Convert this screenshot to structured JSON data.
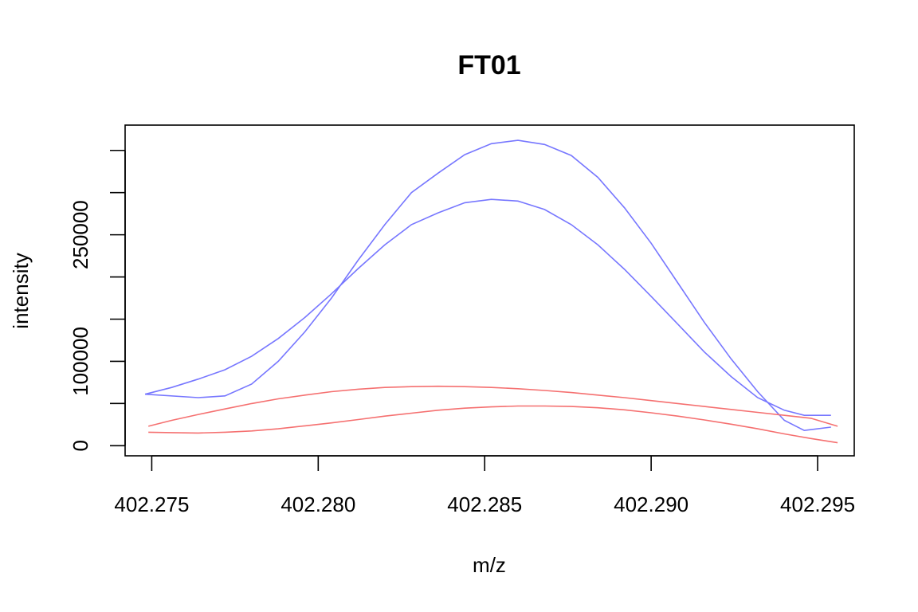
{
  "chart_data": {
    "type": "line",
    "title": "FT01",
    "xlabel": "m/z",
    "ylabel": "intensity",
    "xlim": [
      402.2742,
      402.2961
    ],
    "ylim": [
      -12000,
      380000
    ],
    "x_ticks": [
      402.275,
      402.28,
      402.285,
      402.29,
      402.295
    ],
    "x_tick_labels": [
      "402.275",
      "402.280",
      "402.285",
      "402.290",
      "402.295"
    ],
    "y_ticks": [
      0,
      50000,
      100000,
      150000,
      200000,
      250000,
      300000,
      350000
    ],
    "y_tick_labels": [
      "0",
      "",
      "100000",
      "",
      "",
      "250000",
      "",
      ""
    ],
    "grid": false,
    "legend": "none",
    "colors": {
      "blue": "#7777ff",
      "red": "#f57070"
    },
    "series": [
      {
        "color": "blue",
        "x": [
          402.2748,
          402.2764,
          402.2772,
          402.278,
          402.2788,
          402.2796,
          402.2804,
          402.2812,
          402.282,
          402.2828,
          402.2836,
          402.2844,
          402.2852,
          402.286,
          402.2868,
          402.2876,
          402.2884,
          402.2892,
          402.29,
          402.2908,
          402.2916,
          402.2924,
          402.2932,
          402.294,
          402.2946,
          402.2954
        ],
        "y": [
          61000,
          57000,
          59000,
          73000,
          100000,
          135000,
          175000,
          220000,
          262000,
          300000,
          323000,
          345000,
          358000,
          362000,
          357000,
          344000,
          318000,
          282000,
          240000,
          193000,
          146000,
          103000,
          64000,
          30000,
          18000,
          22000
        ]
      },
      {
        "color": "blue",
        "x": [
          402.2748,
          402.2756,
          402.2764,
          402.2772,
          402.278,
          402.2788,
          402.2796,
          402.2804,
          402.2812,
          402.282,
          402.2828,
          402.2836,
          402.2844,
          402.2852,
          402.286,
          402.2868,
          402.2876,
          402.2884,
          402.2892,
          402.29,
          402.2908,
          402.2916,
          402.2924,
          402.2932,
          402.294,
          402.2946,
          402.2954
        ],
        "y": [
          61000,
          69000,
          79000,
          90000,
          106000,
          127000,
          152000,
          180000,
          210000,
          238000,
          262000,
          276000,
          288000,
          292000,
          290000,
          280000,
          262000,
          238000,
          209000,
          177000,
          144000,
          111000,
          82000,
          57000,
          42000,
          36000,
          36000
        ]
      },
      {
        "color": "red",
        "x": [
          402.2749,
          402.2756,
          402.2764,
          402.2772,
          402.278,
          402.2788,
          402.2796,
          402.2804,
          402.2812,
          402.282,
          402.2828,
          402.2836,
          402.2844,
          402.2852,
          402.286,
          402.2868,
          402.2876,
          402.2884,
          402.2892,
          402.29,
          402.2908,
          402.2916,
          402.2924,
          402.2932,
          402.294,
          402.2948,
          402.2956
        ],
        "y": [
          16000,
          15500,
          15000,
          16000,
          17500,
          20000,
          23500,
          27000,
          31000,
          35000,
          38500,
          42000,
          44500,
          46000,
          47000,
          47000,
          46500,
          45000,
          42500,
          39000,
          35000,
          30500,
          25500,
          20000,
          14000,
          8500,
          3500
        ]
      },
      {
        "color": "red",
        "x": [
          402.2749,
          402.2756,
          402.2764,
          402.2772,
          402.278,
          402.2788,
          402.2796,
          402.2804,
          402.2812,
          402.282,
          402.2828,
          402.2836,
          402.2844,
          402.2852,
          402.286,
          402.2868,
          402.2876,
          402.2884,
          402.2892,
          402.29,
          402.2908,
          402.2916,
          402.2924,
          402.2932,
          402.294,
          402.2948,
          402.2956
        ],
        "y": [
          23000,
          30000,
          37000,
          43500,
          50000,
          55500,
          60000,
          64000,
          67000,
          69000,
          70000,
          70500,
          70000,
          69000,
          67500,
          65500,
          63000,
          60000,
          57000,
          53500,
          50000,
          46500,
          43000,
          39500,
          36000,
          32500,
          23000
        ]
      }
    ]
  }
}
